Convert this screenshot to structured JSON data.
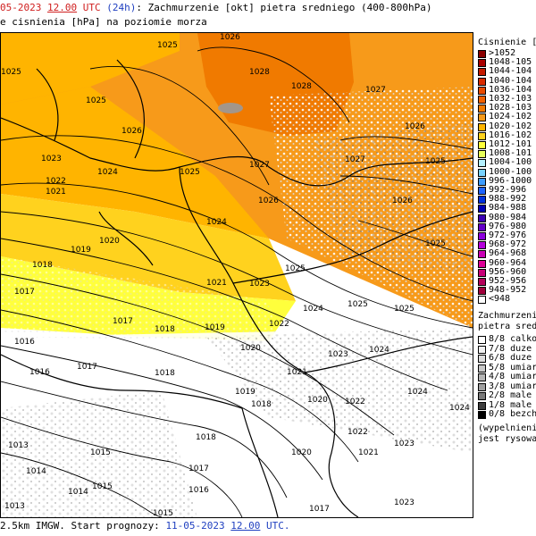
{
  "header": {
    "line1_date": "05-2023",
    "line1_time": "12.00",
    "line1_utc": "UTC",
    "line1_lead": "(24h)",
    "line1_rest": ": Zachmurzenie [okt] pietra sredniego (400-800hPa)",
    "line2": "e cisnienia [hPa] na poziomie morza"
  },
  "footer": {
    "prefix": "2.5km IMGW. Start prognozy: ",
    "start_date": "11-05-2023",
    "start_time": "12.00",
    "suffix": "UTC."
  },
  "legend_pressure": {
    "title": "Cisnienie [hP",
    "items": [
      {
        "label": ">1052",
        "color": "#8a0000"
      },
      {
        "label": "1048-105",
        "color": "#a80000"
      },
      {
        "label": "1044-104",
        "color": "#c41a00"
      },
      {
        "label": "1040-104",
        "color": "#d82a00"
      },
      {
        "label": "1036-104",
        "color": "#e84a00"
      },
      {
        "label": "1032-103",
        "color": "#f06000"
      },
      {
        "label": "1028-103",
        "color": "#f07a00"
      },
      {
        "label": "1024-102",
        "color": "#f79a1a"
      },
      {
        "label": "1020-102",
        "color": "#ffb400"
      },
      {
        "label": "1016-102",
        "color": "#ffd21e"
      },
      {
        "label": "1012-101",
        "color": "#ffff3c"
      },
      {
        "label": "1008-101",
        "color": "#e8ff5a"
      },
      {
        "label": "1004-100",
        "color": "#b4f0ff"
      },
      {
        "label": "1000-100",
        "color": "#78d2ff"
      },
      {
        "label": "996-1000",
        "color": "#3c9cff"
      },
      {
        "label": "992-996",
        "color": "#1e64ff"
      },
      {
        "label": "988-992",
        "color": "#0032dc"
      },
      {
        "label": "984-988",
        "color": "#0000b4"
      },
      {
        "label": "980-984",
        "color": "#3c00b4"
      },
      {
        "label": "976-980",
        "color": "#6400c8"
      },
      {
        "label": "972-976",
        "color": "#8c00dc"
      },
      {
        "label": "968-972",
        "color": "#b400dc"
      },
      {
        "label": "964-968",
        "color": "#c800b4"
      },
      {
        "label": "960-964",
        "color": "#dc0096"
      },
      {
        "label": "956-960",
        "color": "#c80078"
      },
      {
        "label": "952-956",
        "color": "#b4005a"
      },
      {
        "label": "948-952",
        "color": "#a0003c"
      },
      {
        "label": "<948",
        "color": "#ffffff"
      }
    ]
  },
  "legend_clouds": {
    "title1": "Zachmurzenie",
    "title2": "pietra srednie",
    "items": [
      {
        "label": "8/8 calkow",
        "color": "#ffffff"
      },
      {
        "label": "7/8 duze",
        "color": "#f0f0f0"
      },
      {
        "label": "6/8 duze",
        "color": "#dcdcdc"
      },
      {
        "label": "5/8 umiar",
        "color": "#c8c8c8"
      },
      {
        "label": "4/8 umiar",
        "color": "#b4b4b4"
      },
      {
        "label": "3/8 umiar",
        "color": "#a0a0a0"
      },
      {
        "label": "2/8 male",
        "color": "#787878"
      },
      {
        "label": "1/8 male",
        "color": "#3c3c3c"
      },
      {
        "label": "0/8 bezch",
        "color": "#000000"
      }
    ],
    "note1": "(wypelnieni",
    "note2": "jest rysowa"
  },
  "isobar_labels": [
    "1025",
    "1026",
    "1027",
    "1028",
    "1028",
    "1026",
    "1025",
    "1025",
    "1026",
    "1023",
    "1024",
    "1025",
    "1027",
    "1027",
    "1025",
    "1022",
    "1021",
    "1024",
    "1026",
    "1026",
    "1025",
    "1019",
    "1020",
    "1018",
    "1021",
    "1023",
    "1025",
    "1017",
    "1024",
    "1025",
    "1025",
    "1017",
    "1018",
    "1019",
    "1022",
    "1016",
    "1020",
    "1024",
    "1016",
    "1017",
    "1018",
    "1021",
    "1023",
    "1024",
    "1019",
    "1020",
    "1022",
    "1024",
    "1018",
    "1020",
    "1021",
    "1023",
    "1014",
    "1015",
    "1013",
    "1017",
    "1015",
    "1016",
    "1014",
    "1017",
    "1015",
    "1013",
    "1018",
    "1022",
    "1023"
  ]
}
